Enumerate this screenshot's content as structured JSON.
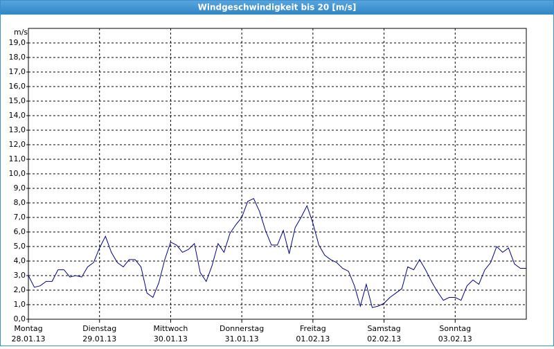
{
  "chart_data": {
    "type": "line",
    "title": "Windgeschwindigkeit bis 20 [m/s]",
    "y_label": "m/s",
    "x": [
      0,
      2,
      4,
      6,
      8,
      10,
      12,
      14,
      16,
      18,
      20,
      22,
      24,
      26,
      28,
      30,
      32,
      34,
      36,
      38,
      40,
      42,
      44,
      46,
      48,
      50,
      52,
      54,
      56,
      58,
      60,
      62,
      64,
      66,
      68,
      70,
      72,
      74,
      76,
      78,
      80,
      82,
      84,
      86,
      88,
      90,
      92,
      94,
      96,
      98,
      100,
      102,
      104,
      106,
      108,
      110,
      112,
      114,
      116,
      118,
      120,
      122,
      124,
      126,
      128,
      130,
      132,
      134,
      136,
      138,
      140,
      142,
      144,
      146,
      148,
      150,
      152,
      154,
      156,
      158,
      160,
      162,
      164,
      166,
      168
    ],
    "series": [
      {
        "color": "#00008b",
        "values": [
          3.0,
          2.2,
          2.3,
          2.6,
          2.6,
          3.4,
          3.4,
          2.9,
          3.0,
          2.9,
          3.6,
          3.9,
          4.9,
          5.7,
          4.6,
          3.9,
          3.6,
          4.1,
          4.1,
          3.6,
          1.8,
          1.5,
          2.5,
          4.1,
          5.3,
          5.1,
          4.6,
          4.8,
          5.2,
          3.2,
          2.6,
          3.7,
          5.2,
          4.6,
          5.9,
          6.5,
          7.0,
          8.1,
          8.3,
          7.4,
          6.1,
          5.1,
          5.1,
          6.1,
          4.5,
          6.3,
          7.0,
          7.8,
          6.6,
          5.1,
          4.4,
          4.1,
          3.9,
          3.5,
          3.3,
          2.3,
          0.9,
          2.4,
          0.8,
          0.9,
          1.1,
          1.5,
          1.8,
          2.1,
          3.6,
          3.4,
          4.1,
          3.4,
          2.6,
          1.9,
          1.3,
          1.5,
          1.5,
          1.3,
          2.3,
          2.7,
          2.4,
          3.4,
          3.9,
          5.0,
          4.6,
          4.9,
          3.8,
          3.5,
          3.5
        ]
      }
    ],
    "xlim": [
      0,
      168
    ],
    "xticks": [
      {
        "value": 0,
        "label": "Montag",
        "date": "28.01.13"
      },
      {
        "value": 24,
        "label": "Dienstag",
        "date": "29.01.13"
      },
      {
        "value": 48,
        "label": "Mittwoch",
        "date": "30.01.13"
      },
      {
        "value": 72,
        "label": "Donnerstag",
        "date": "31.01.13"
      },
      {
        "value": 96,
        "label": "Freitag",
        "date": "01.02.13"
      },
      {
        "value": 120,
        "label": "Samstag",
        "date": "02.02.13"
      },
      {
        "value": 144,
        "label": "Sonntag",
        "date": "03.02.13"
      }
    ],
    "ylim": [
      0,
      20
    ],
    "yticks": [
      {
        "value": 0,
        "label": "0,0"
      },
      {
        "value": 1,
        "label": "1,0"
      },
      {
        "value": 2,
        "label": "2,0"
      },
      {
        "value": 3,
        "label": "3,0"
      },
      {
        "value": 4,
        "label": "4,0"
      },
      {
        "value": 5,
        "label": "5,0"
      },
      {
        "value": 6,
        "label": "6,0"
      },
      {
        "value": 7,
        "label": "7,0"
      },
      {
        "value": 8,
        "label": "8,0"
      },
      {
        "value": 9,
        "label": "9,0"
      },
      {
        "value": 10,
        "label": "10,0"
      },
      {
        "value": 11,
        "label": "11,0"
      },
      {
        "value": 12,
        "label": "12,0"
      },
      {
        "value": 13,
        "label": "13,0"
      },
      {
        "value": 14,
        "label": "14,0"
      },
      {
        "value": 15,
        "label": "15,0"
      },
      {
        "value": 16,
        "label": "16,0"
      },
      {
        "value": 17,
        "label": "17,0"
      },
      {
        "value": 18,
        "label": "18,0"
      },
      {
        "value": 19,
        "label": "19,0"
      }
    ],
    "grid": true
  }
}
